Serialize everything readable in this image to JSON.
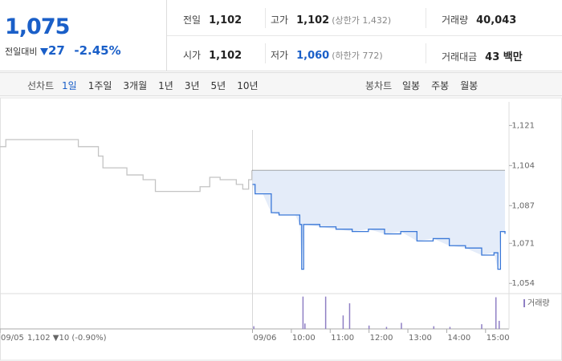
{
  "header": {
    "price": "1,075",
    "change_label": "전일대비",
    "change": "27",
    "change_rate": "-2.45%"
  },
  "stats": [
    {
      "label": "전일",
      "value": "1,102"
    },
    {
      "label": "고가",
      "value": "1,102",
      "note": "(상한가 1,432)"
    },
    {
      "label": "거래량",
      "value": "40,043"
    },
    {
      "label": "시가",
      "value": "1,102"
    },
    {
      "label": "저가",
      "value": "1,060",
      "note": "(하한가 772)"
    },
    {
      "label": "거래대금",
      "value": "43 백만"
    }
  ],
  "tabs": {
    "line_label": "선차트",
    "line": [
      "1일",
      "1주일",
      "3개월",
      "1년",
      "3년",
      "5년",
      "10년"
    ],
    "candle_label": "봉차트",
    "candle": [
      "일봉",
      "주봉",
      "월봉"
    ]
  },
  "chart_data": {
    "type": "line",
    "xlim": [
      -390,
      390
    ],
    "ylim": [
      1050,
      1131
    ],
    "y2lim": [
      0,
      5000
    ],
    "yticks": [
      {
        "value": 1121,
        "label": "1,121"
      },
      {
        "value": 1104,
        "label": "1,104"
      },
      {
        "value": 1087,
        "label": "1,087"
      },
      {
        "value": 1071,
        "label": "1,071"
      },
      {
        "value": 1054,
        "label": "1,054"
      }
    ],
    "xticks": [
      {
        "value": -390,
        "label": "09/05"
      },
      {
        "value": 0,
        "label": "09/06"
      },
      {
        "value": 60,
        "label": "10:00"
      },
      {
        "value": 120,
        "label": "11:00"
      },
      {
        "value": 180,
        "label": "12:00"
      },
      {
        "value": 240,
        "label": "13:00"
      },
      {
        "value": 300,
        "label": "14:00"
      },
      {
        "value": 360,
        "label": "15:00"
      }
    ],
    "reference": 1102,
    "prev_summary": "1,102 ▼10 (-0.90%)",
    "series": [
      {
        "color": "#c4c4c4",
        "x": [
          -390,
          -381,
          -319,
          -269,
          -238,
          -231,
          -194,
          -169,
          -150,
          -106,
          -81,
          -66,
          -50,
          -25,
          -15,
          -6,
          -1
        ],
        "values": [
          1112,
          1115,
          1115,
          1112,
          1108,
          1103,
          1100,
          1098,
          1093,
          1093,
          1095,
          1099,
          1098,
          1096,
          1094,
          1098,
          1102
        ]
      },
      {
        "color": "#3a78d8",
        "fill": "#e4ecf9",
        "x": [
          0,
          4,
          16,
          29,
          41,
          66,
          73,
          76,
          79,
          104,
          129,
          154,
          179,
          204,
          229,
          254,
          279,
          304,
          329,
          354,
          373,
          379,
          383,
          390
        ],
        "values": [
          1096,
          1092,
          1092,
          1084,
          1083,
          1083,
          1079,
          1060,
          1079,
          1078,
          1077,
          1076,
          1077,
          1075,
          1076,
          1072,
          1073,
          1070,
          1069,
          1066,
          1067,
          1060,
          1076,
          1075
        ]
      },
      {
        "name": "거래량",
        "color": "#8f7fc4",
        "axis": "y2",
        "x": [
          2,
          78,
          81,
          113,
          140,
          150,
          180,
          207,
          230,
          280,
          305,
          354,
          376,
          381
        ],
        "values": [
          400,
          4800,
          800,
          4800,
          2000,
          3800,
          500,
          300,
          900,
          400,
          300,
          700,
          4700,
          1200
        ]
      }
    ]
  }
}
